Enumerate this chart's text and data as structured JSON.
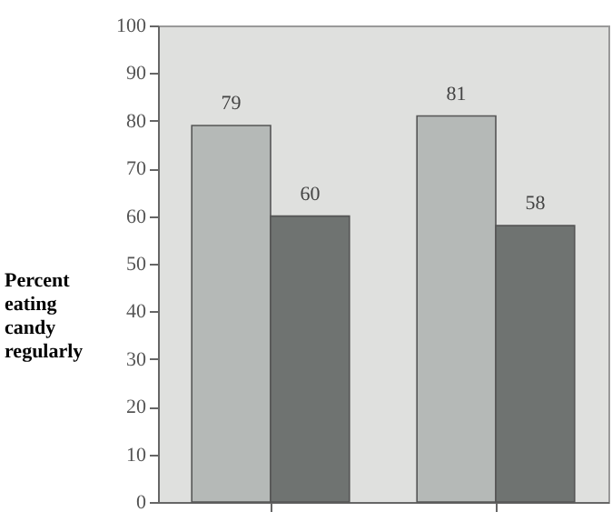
{
  "chart_data": {
    "type": "bar",
    "ylabel": "Percent eating candy regularly",
    "categories": [
      null,
      null
    ],
    "series": [
      {
        "color": "#b5b9b7",
        "values": [
          79,
          81
        ]
      },
      {
        "color": "#6f7371",
        "values": [
          60,
          58
        ]
      }
    ],
    "ylim": [
      0,
      100
    ],
    "yticks": [
      0,
      10,
      20,
      30,
      40,
      50,
      60,
      70,
      80,
      90,
      100
    ],
    "data_labels": true,
    "grid": false
  }
}
